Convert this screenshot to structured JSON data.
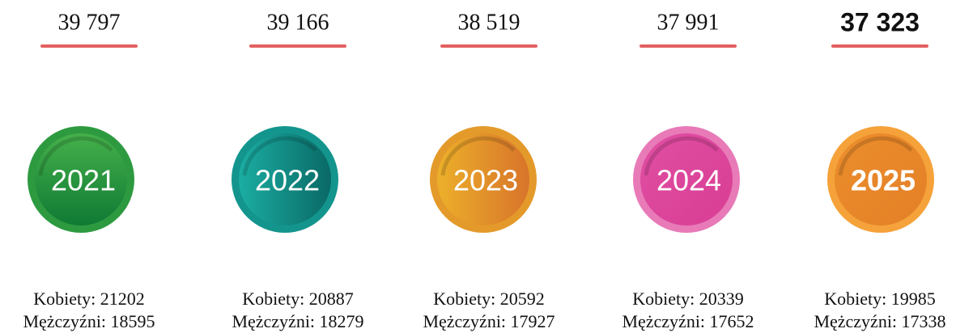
{
  "items": [
    {
      "total": "39 797",
      "year": "2021",
      "women": "Kobiety: 21202",
      "men": "Mężczyźni: 18595"
    },
    {
      "total": "39 166",
      "year": "2022",
      "women": "Kobiety: 20887",
      "men": "Mężczyźni: 18279"
    },
    {
      "total": "38 519",
      "year": "2023",
      "women": "Kobiety: 20592",
      "men": "Mężczyźni: 17927"
    },
    {
      "total": "37 991",
      "year": "2024",
      "women": "Kobiety: 20339",
      "men": "Mężczyźni: 17652"
    },
    {
      "total": "37 323",
      "year": "2025",
      "women": "Kobiety: 19985",
      "men": "Mężczyźni: 17338"
    }
  ]
}
